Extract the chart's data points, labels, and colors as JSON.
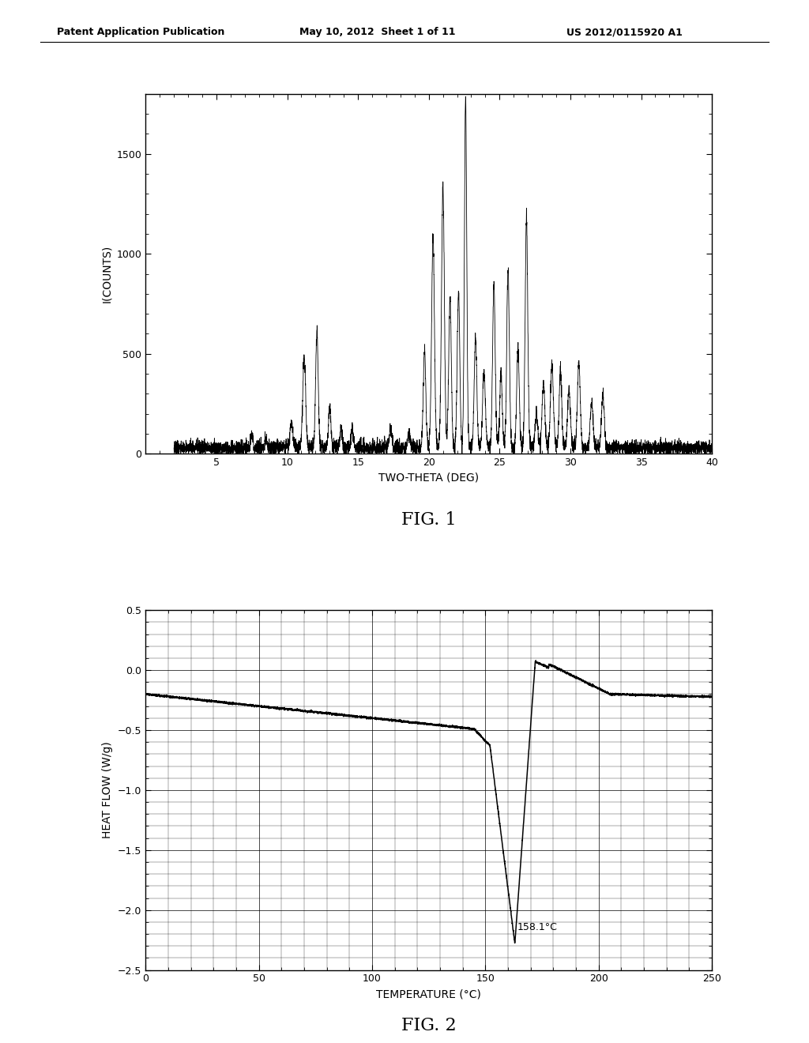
{
  "header_left": "Patent Application Publication",
  "header_mid": "May 10, 2012  Sheet 1 of 11",
  "header_right": "US 2012/0115920 A1",
  "fig1": {
    "xlabel": "TWO-THETA (DEG)",
    "ylabel": "I(COUNTS)",
    "xlim": [
      0,
      40
    ],
    "ylim": [
      0,
      1800
    ],
    "yticks": [
      0,
      500,
      1000,
      1500
    ],
    "xticks": [
      5,
      10,
      15,
      20,
      25,
      30,
      35,
      40
    ],
    "caption": "FIG. 1"
  },
  "fig2": {
    "xlabel": "TEMPERATURE (°C)",
    "ylabel": "HEAT FLOW (W/g)",
    "xlim": [
      0,
      250
    ],
    "ylim": [
      -2.5,
      0.5
    ],
    "yticks": [
      -2.5,
      -2.0,
      -1.5,
      -1.0,
      -0.5,
      0.0,
      0.5
    ],
    "xticks": [
      0,
      50,
      100,
      150,
      200,
      250
    ],
    "annotation": "158.1°C",
    "caption": "FIG. 2"
  },
  "background_color": "#ffffff",
  "line_color": "#000000"
}
